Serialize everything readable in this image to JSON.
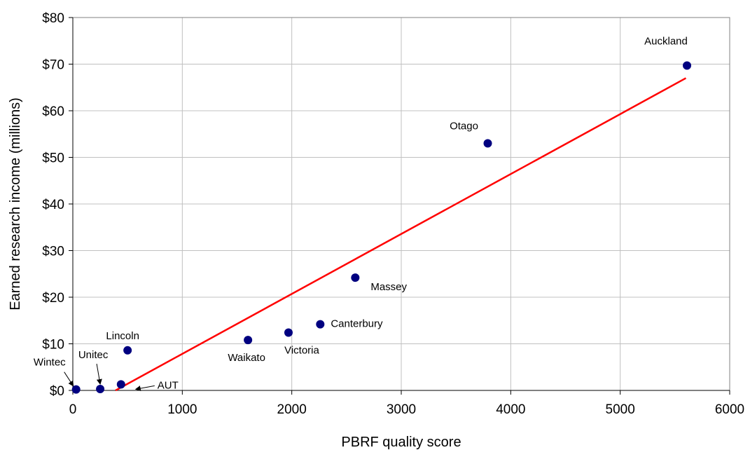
{
  "chart_data": {
    "type": "scatter",
    "xlabel": "PBRF quality score",
    "ylabel": "Earned research income (millions)",
    "xlim": [
      0,
      6000
    ],
    "ylim": [
      0,
      80
    ],
    "x_ticks": [
      0,
      1000,
      2000,
      3000,
      4000,
      5000,
      6000
    ],
    "x_tick_labels": [
      "0",
      "1000",
      "2000",
      "3000",
      "4000",
      "5000",
      "6000"
    ],
    "y_ticks": [
      0,
      10,
      20,
      30,
      40,
      50,
      60,
      70,
      80
    ],
    "y_tick_labels": [
      "$0",
      "$10",
      "$20",
      "$30",
      "$40",
      "$50",
      "$60",
      "$70",
      "$80"
    ],
    "grid": true,
    "marker_color": "#000080",
    "trendline_color": "#ff0000",
    "points": [
      {
        "label": "Wintec",
        "x": 30,
        "y": 0.2
      },
      {
        "label": "Unitec",
        "x": 250,
        "y": 0.3
      },
      {
        "label": "AUT",
        "x": 440,
        "y": 1.3
      },
      {
        "label": "Lincoln",
        "x": 500,
        "y": 8.6
      },
      {
        "label": "Waikato",
        "x": 1600,
        "y": 10.8
      },
      {
        "label": "Victoria",
        "x": 1970,
        "y": 12.4
      },
      {
        "label": "Canterbury",
        "x": 2260,
        "y": 14.2
      },
      {
        "label": "Massey",
        "x": 2580,
        "y": 24.2
      },
      {
        "label": "Otago",
        "x": 3790,
        "y": 53.0
      },
      {
        "label": "Auckland",
        "x": 5610,
        "y": 69.7
      }
    ],
    "trendline": {
      "x": [
        390,
        5600
      ],
      "y": [
        0,
        67
      ]
    }
  }
}
